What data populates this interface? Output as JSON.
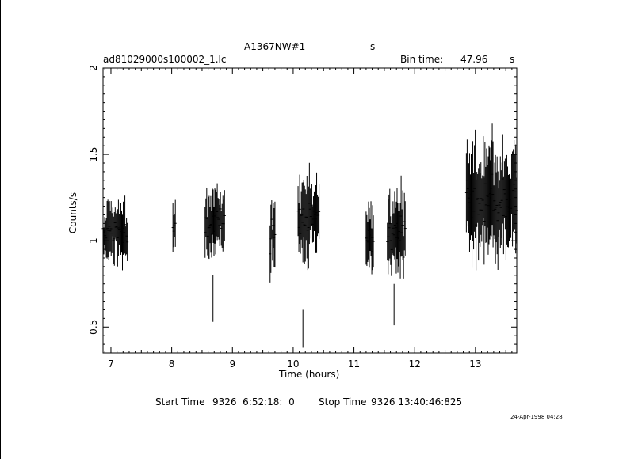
{
  "header": {
    "object_name": "A1367NW#1",
    "units_suffix": "s",
    "file_name": "ad81029000s100002_1.lc",
    "bin_time_label": "Bin time:",
    "bin_time_value": "47.96",
    "bin_time_unit": "s"
  },
  "footer": {
    "start_label": "Start Time",
    "start_value": "9326  6:52:18:  0",
    "stop_label": "Stop Time",
    "stop_value": "9326 13:40:46:825",
    "timestamp": "24-Apr-1998 04:28"
  },
  "chart_data": {
    "type": "line",
    "style": "error-bar light curve",
    "xlabel": "Time (hours)",
    "ylabel": "Counts/s",
    "xlim": [
      6.87,
      13.68
    ],
    "ylim": [
      0.35,
      2.0
    ],
    "xticks": [
      "7",
      "8",
      "9",
      "10",
      "11",
      "12",
      "13"
    ],
    "xtick_values": [
      7,
      8,
      9,
      10,
      11,
      12,
      13
    ],
    "yticks": [
      "0.5",
      "1",
      "1.5",
      "2"
    ],
    "ytick_values": [
      0.5,
      1.0,
      1.5,
      2.0
    ],
    "grid": false,
    "segments": [
      {
        "start": 6.87,
        "end": 7.28,
        "mean": 1.05,
        "spread": 0.22
      },
      {
        "start": 8.02,
        "end": 8.07,
        "mean": 1.1,
        "spread": 0.18
      },
      {
        "start": 8.55,
        "end": 8.88,
        "mean": 1.1,
        "spread": 0.25
      },
      {
        "start": 9.62,
        "end": 9.71,
        "mean": 1.05,
        "spread": 0.25
      },
      {
        "start": 10.08,
        "end": 10.43,
        "mean": 1.12,
        "spread": 0.3
      },
      {
        "start": 11.2,
        "end": 11.32,
        "mean": 1.0,
        "spread": 0.25
      },
      {
        "start": 11.55,
        "end": 11.85,
        "mean": 1.05,
        "spread": 0.3
      },
      {
        "start": 12.85,
        "end": 13.68,
        "mean": 1.22,
        "spread": 0.4
      }
    ],
    "outliers": [
      {
        "x": 8.68,
        "y": 0.63,
        "low": 0.53,
        "high": 0.8
      },
      {
        "x": 10.16,
        "y": 0.48,
        "low": 0.38,
        "high": 0.6
      },
      {
        "x": 11.66,
        "y": 0.62,
        "low": 0.51,
        "high": 0.75
      }
    ]
  }
}
